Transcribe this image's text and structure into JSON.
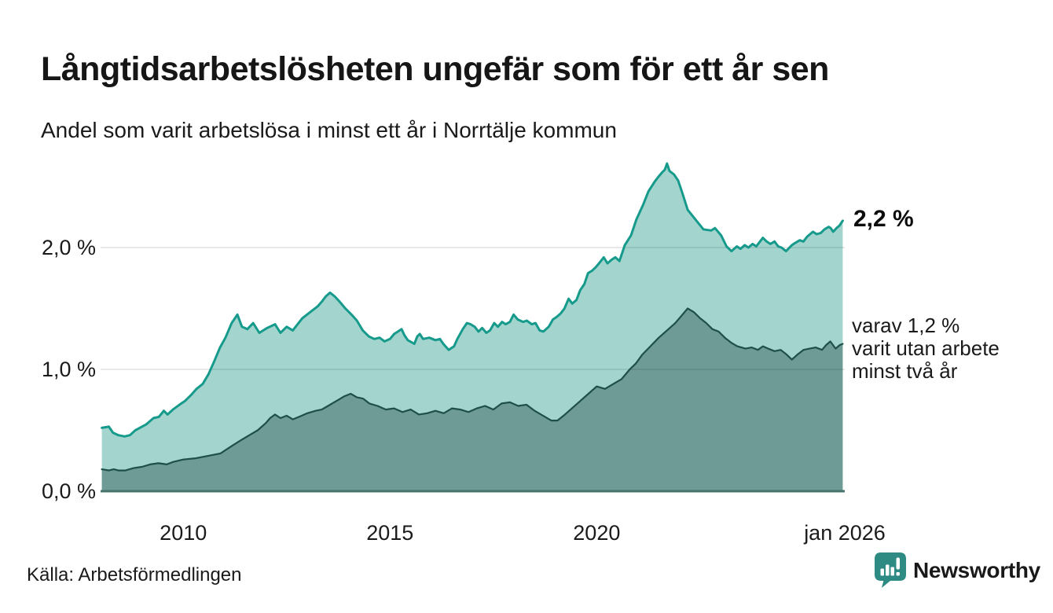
{
  "header": {
    "title": "Långtidsarbetslösheten ungefär som för ett år sen",
    "subtitle": "Andel som varit arbetslösa i minst ett år i Norrtälje kommun"
  },
  "chart_data": {
    "type": "area",
    "x_domain": [
      2008,
      2026
    ],
    "ylim": [
      0,
      2.8
    ],
    "grid": "on",
    "colors": {
      "grid": "rgba(20,20,20,0.13)",
      "axis_line": "#47736c",
      "total_line": "#169a8b",
      "total_fill": "#a3d5ce",
      "secondary_line": "#1e4f48",
      "secondary_fill": "#6f9b96"
    },
    "y_ticks": [
      {
        "value": 0,
        "label": "0,0 %"
      },
      {
        "value": 1,
        "label": "1,0 %"
      },
      {
        "value": 2,
        "label": "2,0 %"
      }
    ],
    "x_ticks": [
      {
        "year": 2010,
        "label": "2010"
      },
      {
        "year": 2015,
        "label": "2015"
      },
      {
        "year": 2020,
        "label": "2020"
      },
      {
        "year": 2026,
        "label": "jan 2026"
      }
    ],
    "end_labels": {
      "total": "2,2 %",
      "secondary_lines": [
        "varav 1,2 %",
        "varit utan arbete",
        "minst två år"
      ]
    },
    "series": [
      {
        "id": "minst-ett-ar",
        "name": "Andel arbetslösa minst ett år",
        "stroke": "#169a8b",
        "fill": "#a3d5ce",
        "stroke_width": 3,
        "points": [
          [
            2008.03,
            0.52
          ],
          [
            2008.2,
            0.53
          ],
          [
            2008.3,
            0.48
          ],
          [
            2008.43,
            0.46
          ],
          [
            2008.58,
            0.45
          ],
          [
            2008.71,
            0.46
          ],
          [
            2008.84,
            0.5
          ],
          [
            2009.0,
            0.53
          ],
          [
            2009.11,
            0.55
          ],
          [
            2009.28,
            0.6
          ],
          [
            2009.41,
            0.61
          ],
          [
            2009.53,
            0.66
          ],
          [
            2009.62,
            0.63
          ],
          [
            2009.75,
            0.67
          ],
          [
            2009.91,
            0.71
          ],
          [
            2010.04,
            0.74
          ],
          [
            2010.19,
            0.79
          ],
          [
            2010.32,
            0.84
          ],
          [
            2010.47,
            0.88
          ],
          [
            2010.61,
            0.96
          ],
          [
            2010.74,
            1.06
          ],
          [
            2010.89,
            1.18
          ],
          [
            2011.02,
            1.26
          ],
          [
            2011.17,
            1.38
          ],
          [
            2011.31,
            1.45
          ],
          [
            2011.42,
            1.35
          ],
          [
            2011.55,
            1.33
          ],
          [
            2011.69,
            1.38
          ],
          [
            2011.84,
            1.3
          ],
          [
            2012.03,
            1.34
          ],
          [
            2012.22,
            1.37
          ],
          [
            2012.35,
            1.3
          ],
          [
            2012.5,
            1.35
          ],
          [
            2012.65,
            1.32
          ],
          [
            2012.88,
            1.42
          ],
          [
            2013.07,
            1.47
          ],
          [
            2013.26,
            1.52
          ],
          [
            2013.36,
            1.56
          ],
          [
            2013.45,
            1.6
          ],
          [
            2013.55,
            1.63
          ],
          [
            2013.66,
            1.6
          ],
          [
            2013.77,
            1.56
          ],
          [
            2013.92,
            1.5
          ],
          [
            2014.07,
            1.45
          ],
          [
            2014.2,
            1.4
          ],
          [
            2014.34,
            1.32
          ],
          [
            2014.49,
            1.27
          ],
          [
            2014.62,
            1.25
          ],
          [
            2014.75,
            1.26
          ],
          [
            2014.87,
            1.23
          ],
          [
            2015.0,
            1.25
          ],
          [
            2015.1,
            1.29
          ],
          [
            2015.28,
            1.33
          ],
          [
            2015.35,
            1.28
          ],
          [
            2015.43,
            1.24
          ],
          [
            2015.59,
            1.21
          ],
          [
            2015.66,
            1.27
          ],
          [
            2015.72,
            1.29
          ],
          [
            2015.8,
            1.25
          ],
          [
            2015.95,
            1.26
          ],
          [
            2016.1,
            1.24
          ],
          [
            2016.21,
            1.25
          ],
          [
            2016.29,
            1.21
          ],
          [
            2016.42,
            1.16
          ],
          [
            2016.55,
            1.19
          ],
          [
            2016.63,
            1.25
          ],
          [
            2016.76,
            1.33
          ],
          [
            2016.86,
            1.38
          ],
          [
            2016.95,
            1.37
          ],
          [
            2017.05,
            1.35
          ],
          [
            2017.14,
            1.31
          ],
          [
            2017.23,
            1.34
          ],
          [
            2017.33,
            1.3
          ],
          [
            2017.42,
            1.32
          ],
          [
            2017.52,
            1.38
          ],
          [
            2017.61,
            1.35
          ],
          [
            2017.71,
            1.39
          ],
          [
            2017.8,
            1.37
          ],
          [
            2017.9,
            1.39
          ],
          [
            2017.99,
            1.45
          ],
          [
            2018.09,
            1.41
          ],
          [
            2018.22,
            1.39
          ],
          [
            2018.31,
            1.4
          ],
          [
            2018.43,
            1.37
          ],
          [
            2018.52,
            1.38
          ],
          [
            2018.62,
            1.32
          ],
          [
            2018.71,
            1.31
          ],
          [
            2018.84,
            1.35
          ],
          [
            2018.94,
            1.41
          ],
          [
            2019.03,
            1.43
          ],
          [
            2019.13,
            1.46
          ],
          [
            2019.22,
            1.5
          ],
          [
            2019.32,
            1.58
          ],
          [
            2019.41,
            1.54
          ],
          [
            2019.51,
            1.57
          ],
          [
            2019.6,
            1.65
          ],
          [
            2019.7,
            1.7
          ],
          [
            2019.79,
            1.79
          ],
          [
            2019.89,
            1.81
          ],
          [
            2019.98,
            1.84
          ],
          [
            2020.08,
            1.88
          ],
          [
            2020.17,
            1.92
          ],
          [
            2020.26,
            1.87
          ],
          [
            2020.36,
            1.9
          ],
          [
            2020.45,
            1.92
          ],
          [
            2020.55,
            1.89
          ],
          [
            2020.68,
            2.02
          ],
          [
            2020.83,
            2.1
          ],
          [
            2020.96,
            2.23
          ],
          [
            2021.12,
            2.35
          ],
          [
            2021.25,
            2.46
          ],
          [
            2021.4,
            2.54
          ],
          [
            2021.49,
            2.58
          ],
          [
            2021.59,
            2.62
          ],
          [
            2021.65,
            2.64
          ],
          [
            2021.7,
            2.69
          ],
          [
            2021.76,
            2.63
          ],
          [
            2021.87,
            2.6
          ],
          [
            2021.97,
            2.55
          ],
          [
            2022.06,
            2.46
          ],
          [
            2022.2,
            2.31
          ],
          [
            2022.39,
            2.23
          ],
          [
            2022.58,
            2.15
          ],
          [
            2022.77,
            2.14
          ],
          [
            2022.86,
            2.16
          ],
          [
            2023.01,
            2.1
          ],
          [
            2023.14,
            2.01
          ],
          [
            2023.26,
            1.97
          ],
          [
            2023.39,
            2.01
          ],
          [
            2023.48,
            1.99
          ],
          [
            2023.58,
            2.02
          ],
          [
            2023.67,
            2.0
          ],
          [
            2023.77,
            2.03
          ],
          [
            2023.86,
            2.01
          ],
          [
            2024.02,
            2.08
          ],
          [
            2024.11,
            2.05
          ],
          [
            2024.2,
            2.03
          ],
          [
            2024.3,
            2.05
          ],
          [
            2024.39,
            2.01
          ],
          [
            2024.47,
            2.0
          ],
          [
            2024.58,
            1.97
          ],
          [
            2024.72,
            2.02
          ],
          [
            2024.81,
            2.04
          ],
          [
            2024.91,
            2.06
          ],
          [
            2025.0,
            2.05
          ],
          [
            2025.09,
            2.09
          ],
          [
            2025.23,
            2.13
          ],
          [
            2025.32,
            2.11
          ],
          [
            2025.42,
            2.12
          ],
          [
            2025.51,
            2.15
          ],
          [
            2025.61,
            2.17
          ],
          [
            2025.66,
            2.16
          ],
          [
            2025.72,
            2.13
          ],
          [
            2025.8,
            2.16
          ],
          [
            2025.87,
            2.18
          ],
          [
            2025.95,
            2.22
          ]
        ]
      },
      {
        "id": "minst-tva-ar",
        "name": "Andel utan arbete minst två år",
        "stroke": "#1e4f48",
        "fill": "#6f9b96",
        "stroke_width": 2.2,
        "points": [
          [
            2008.03,
            0.18
          ],
          [
            2008.2,
            0.17
          ],
          [
            2008.32,
            0.18
          ],
          [
            2008.43,
            0.17
          ],
          [
            2008.6,
            0.17
          ],
          [
            2008.8,
            0.19
          ],
          [
            2009.0,
            0.2
          ],
          [
            2009.2,
            0.22
          ],
          [
            2009.4,
            0.23
          ],
          [
            2009.6,
            0.22
          ],
          [
            2009.75,
            0.24
          ],
          [
            2010.0,
            0.26
          ],
          [
            2010.3,
            0.27
          ],
          [
            2010.6,
            0.29
          ],
          [
            2010.9,
            0.31
          ],
          [
            2011.17,
            0.37
          ],
          [
            2011.4,
            0.42
          ],
          [
            2011.6,
            0.46
          ],
          [
            2011.8,
            0.5
          ],
          [
            2012.0,
            0.56
          ],
          [
            2012.1,
            0.6
          ],
          [
            2012.22,
            0.63
          ],
          [
            2012.35,
            0.6
          ],
          [
            2012.5,
            0.62
          ],
          [
            2012.65,
            0.59
          ],
          [
            2012.8,
            0.61
          ],
          [
            2013.0,
            0.64
          ],
          [
            2013.2,
            0.66
          ],
          [
            2013.35,
            0.67
          ],
          [
            2013.5,
            0.7
          ],
          [
            2013.6,
            0.72
          ],
          [
            2013.75,
            0.75
          ],
          [
            2013.9,
            0.78
          ],
          [
            2014.05,
            0.8
          ],
          [
            2014.2,
            0.77
          ],
          [
            2014.35,
            0.76
          ],
          [
            2014.5,
            0.72
          ],
          [
            2014.7,
            0.7
          ],
          [
            2014.9,
            0.67
          ],
          [
            2015.1,
            0.68
          ],
          [
            2015.3,
            0.65
          ],
          [
            2015.5,
            0.67
          ],
          [
            2015.7,
            0.63
          ],
          [
            2015.9,
            0.64
          ],
          [
            2016.1,
            0.66
          ],
          [
            2016.3,
            0.64
          ],
          [
            2016.5,
            0.68
          ],
          [
            2016.7,
            0.67
          ],
          [
            2016.9,
            0.65
          ],
          [
            2017.1,
            0.68
          ],
          [
            2017.3,
            0.7
          ],
          [
            2017.5,
            0.67
          ],
          [
            2017.7,
            0.72
          ],
          [
            2017.9,
            0.73
          ],
          [
            2018.1,
            0.7
          ],
          [
            2018.3,
            0.71
          ],
          [
            2018.5,
            0.66
          ],
          [
            2018.6,
            0.64
          ],
          [
            2018.75,
            0.61
          ],
          [
            2018.9,
            0.58
          ],
          [
            2019.05,
            0.58
          ],
          [
            2019.2,
            0.62
          ],
          [
            2019.4,
            0.68
          ],
          [
            2019.6,
            0.74
          ],
          [
            2019.8,
            0.8
          ],
          [
            2020.0,
            0.86
          ],
          [
            2020.2,
            0.84
          ],
          [
            2020.4,
            0.88
          ],
          [
            2020.6,
            0.92
          ],
          [
            2020.8,
            1.0
          ],
          [
            2020.95,
            1.05
          ],
          [
            2021.1,
            1.12
          ],
          [
            2021.3,
            1.19
          ],
          [
            2021.5,
            1.26
          ],
          [
            2021.7,
            1.32
          ],
          [
            2021.9,
            1.38
          ],
          [
            2022.05,
            1.44
          ],
          [
            2022.2,
            1.5
          ],
          [
            2022.35,
            1.47
          ],
          [
            2022.5,
            1.42
          ],
          [
            2022.65,
            1.38
          ],
          [
            2022.8,
            1.33
          ],
          [
            2022.95,
            1.31
          ],
          [
            2023.1,
            1.26
          ],
          [
            2023.25,
            1.22
          ],
          [
            2023.4,
            1.19
          ],
          [
            2023.6,
            1.17
          ],
          [
            2023.75,
            1.18
          ],
          [
            2023.9,
            1.16
          ],
          [
            2024.02,
            1.19
          ],
          [
            2024.15,
            1.17
          ],
          [
            2024.3,
            1.15
          ],
          [
            2024.45,
            1.16
          ],
          [
            2024.6,
            1.12
          ],
          [
            2024.72,
            1.08
          ],
          [
            2024.85,
            1.12
          ],
          [
            2025.0,
            1.16
          ],
          [
            2025.15,
            1.17
          ],
          [
            2025.3,
            1.18
          ],
          [
            2025.45,
            1.16
          ],
          [
            2025.55,
            1.2
          ],
          [
            2025.65,
            1.23
          ],
          [
            2025.78,
            1.17
          ],
          [
            2025.88,
            1.2
          ],
          [
            2025.95,
            1.21
          ]
        ]
      }
    ]
  },
  "footer": {
    "source": "Källa: Arbetsförmedlingen",
    "brand": "Newsworthy",
    "brand_color": "#2e8b84"
  }
}
